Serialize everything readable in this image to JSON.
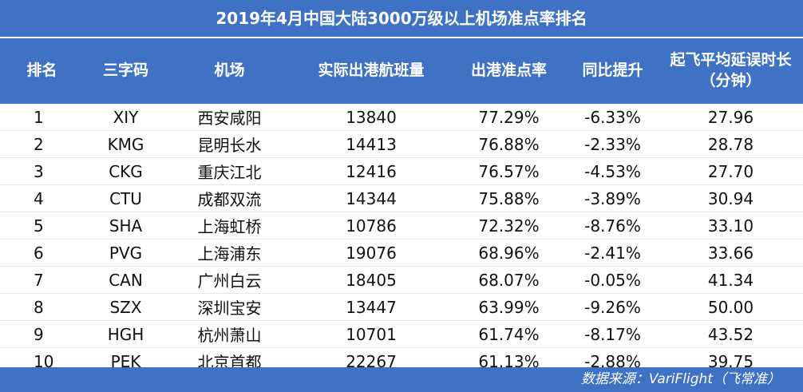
{
  "title": "2019年4月中国大陆3000万级以上机场准点率排名",
  "headers": {
    "rank": "排名",
    "code": "三字码",
    "airport": "机场",
    "flights": "实际出港航班量",
    "ontime": "出港准点率",
    "yoy": "同比提升",
    "delay_line1": "起飞平均延误时长",
    "delay_line2": "（分钟）"
  },
  "source": "数据来源：VariFlight（飞常准）",
  "colors": {
    "header_bg": "#3f72c4",
    "header_text": "#ffffff",
    "body_text": "#111111"
  },
  "chart_data": {
    "type": "table",
    "columns": [
      "排名",
      "三字码",
      "机场",
      "实际出港航班量",
      "出港准点率",
      "同比提升",
      "起飞平均延误时长（分钟）"
    ],
    "rows": [
      [
        "1",
        "XIY",
        "西安咸阳",
        "13840",
        "77.29%",
        "-6.33%",
        "27.96"
      ],
      [
        "2",
        "KMG",
        "昆明长水",
        "14413",
        "76.88%",
        "-2.33%",
        "28.78"
      ],
      [
        "3",
        "CKG",
        "重庆江北",
        "12416",
        "76.57%",
        "-4.53%",
        "27.70"
      ],
      [
        "4",
        "CTU",
        "成都双流",
        "14344",
        "75.88%",
        "-3.89%",
        "30.94"
      ],
      [
        "5",
        "SHA",
        "上海虹桥",
        "10786",
        "72.32%",
        "-8.76%",
        "33.10"
      ],
      [
        "6",
        "PVG",
        "上海浦东",
        "19076",
        "68.96%",
        "-2.41%",
        "33.66"
      ],
      [
        "7",
        "CAN",
        "广州白云",
        "18405",
        "68.07%",
        "-0.05%",
        "41.34"
      ],
      [
        "8",
        "SZX",
        "深圳宝安",
        "13447",
        "63.99%",
        "-9.26%",
        "50.00"
      ],
      [
        "9",
        "HGH",
        "杭州萧山",
        "10701",
        "61.74%",
        "-8.17%",
        "43.52"
      ],
      [
        "10",
        "PEK",
        "北京首都",
        "22267",
        "61.13%",
        "-2.88%",
        "39.75"
      ]
    ]
  }
}
